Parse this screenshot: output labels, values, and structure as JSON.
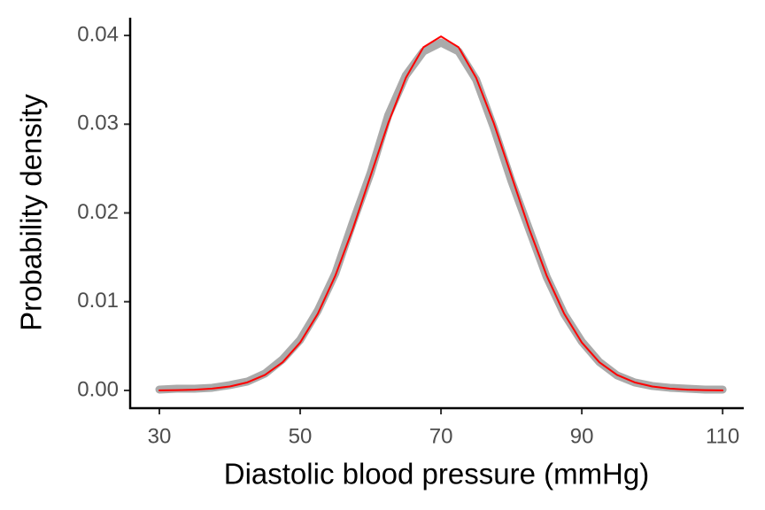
{
  "chart_data": {
    "type": "line",
    "x_label": "Diastolic blood pressure (mmHg)",
    "y_label": "Probability density",
    "x": [
      30,
      32.5,
      35,
      37.5,
      40,
      42.5,
      45,
      47.5,
      50,
      52.5,
      55,
      57.5,
      60,
      62.5,
      65,
      67.5,
      70,
      72.5,
      75,
      77.5,
      80,
      82.5,
      85,
      87.5,
      90,
      92.5,
      95,
      97.5,
      100,
      102.5,
      105,
      107.5,
      110
    ],
    "series": [
      {
        "color": "#aaaaaa",
        "width": 9,
        "values": [
          0.0001,
          0.0002,
          0.0002,
          0.0003,
          0.0006,
          0.001,
          0.0019,
          0.0035,
          0.0057,
          0.009,
          0.0132,
          0.019,
          0.0245,
          0.031,
          0.0355,
          0.0382,
          0.0392,
          0.0382,
          0.035,
          0.0296,
          0.0236,
          0.0182,
          0.0128,
          0.0086,
          0.0055,
          0.0032,
          0.0017,
          0.0009,
          0.0005,
          0.0003,
          0.0002,
          0.0001,
          0.0001
        ]
      },
      {
        "color": "#ff0000",
        "width": 2,
        "values": [
          1.34e-05,
          3.53e-05,
          8.73e-05,
          0.000203,
          0.000443,
          0.000909,
          0.00175,
          0.00317,
          0.0054,
          0.00864,
          0.01295,
          0.01826,
          0.0242,
          0.03011,
          0.03521,
          0.03867,
          0.03989,
          0.03867,
          0.03521,
          0.03011,
          0.0242,
          0.01826,
          0.01295,
          0.00864,
          0.0054,
          0.00317,
          0.00175,
          0.000909,
          0.000443,
          0.000203,
          8.73e-05,
          3.53e-05,
          1.34e-05
        ]
      }
    ],
    "xlim": [
      25.85,
      113
    ],
    "xticks": [
      30,
      50,
      70,
      90,
      110
    ],
    "ylim": [
      -0.002,
      0.042
    ],
    "yticks": [
      {
        "value": 0,
        "label": "0.00"
      },
      0.01,
      0.02,
      0.03,
      0.04
    ],
    "grid": false
  }
}
